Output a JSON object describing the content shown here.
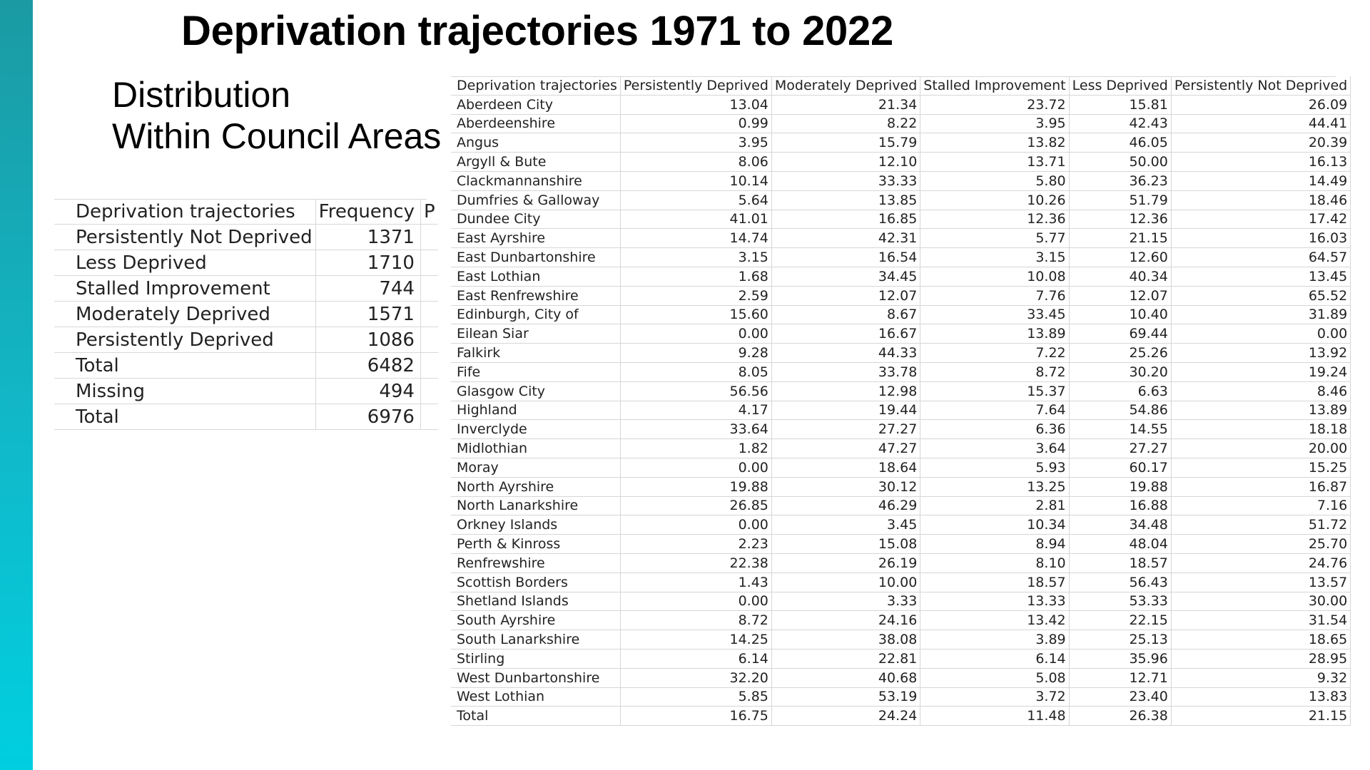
{
  "title": "Deprivation trajectories 1971 to 2022",
  "subtitle": [
    "Distribution",
    "Within Council Areas"
  ],
  "frequency_table": {
    "headers": [
      "Deprivation trajectories",
      "Frequency",
      "P"
    ],
    "rows": [
      {
        "label": "Persistently Not Deprived",
        "value": "1371"
      },
      {
        "label": "Less Deprived",
        "value": "1710"
      },
      {
        "label": "Stalled Improvement",
        "value": "744"
      },
      {
        "label": "Moderately Deprived",
        "value": "1571"
      },
      {
        "label": "Persistently Deprived",
        "value": "1086"
      },
      {
        "label": "Total",
        "value": "6482"
      },
      {
        "label": "Missing",
        "value": "494"
      },
      {
        "label": "Total",
        "value": "6976"
      }
    ]
  },
  "council_table": {
    "headers": [
      "Deprivation trajectories",
      "Persistently Deprived",
      "Moderately Deprived",
      "Stalled Improvement",
      "Less Deprived",
      "Persistently Not Deprived"
    ],
    "rows": [
      [
        "Aberdeen City",
        "13.04",
        "21.34",
        "23.72",
        "15.81",
        "26.09"
      ],
      [
        "Aberdeenshire",
        "0.99",
        "8.22",
        "3.95",
        "42.43",
        "44.41"
      ],
      [
        "Angus",
        "3.95",
        "15.79",
        "13.82",
        "46.05",
        "20.39"
      ],
      [
        "Argyll & Bute",
        "8.06",
        "12.10",
        "13.71",
        "50.00",
        "16.13"
      ],
      [
        "Clackmannanshire",
        "10.14",
        "33.33",
        "5.80",
        "36.23",
        "14.49"
      ],
      [
        "Dumfries & Galloway",
        "5.64",
        "13.85",
        "10.26",
        "51.79",
        "18.46"
      ],
      [
        "Dundee City",
        "41.01",
        "16.85",
        "12.36",
        "12.36",
        "17.42"
      ],
      [
        "East Ayrshire",
        "14.74",
        "42.31",
        "5.77",
        "21.15",
        "16.03"
      ],
      [
        "East Dunbartonshire",
        "3.15",
        "16.54",
        "3.15",
        "12.60",
        "64.57"
      ],
      [
        "East Lothian",
        "1.68",
        "34.45",
        "10.08",
        "40.34",
        "13.45"
      ],
      [
        "East Renfrewshire",
        "2.59",
        "12.07",
        "7.76",
        "12.07",
        "65.52"
      ],
      [
        "Edinburgh, City of",
        "15.60",
        "8.67",
        "33.45",
        "10.40",
        "31.89"
      ],
      [
        "Eilean Siar",
        "0.00",
        "16.67",
        "13.89",
        "69.44",
        "0.00"
      ],
      [
        "Falkirk",
        "9.28",
        "44.33",
        "7.22",
        "25.26",
        "13.92"
      ],
      [
        "Fife",
        "8.05",
        "33.78",
        "8.72",
        "30.20",
        "19.24"
      ],
      [
        "Glasgow City",
        "56.56",
        "12.98",
        "15.37",
        "6.63",
        "8.46"
      ],
      [
        "Highland",
        "4.17",
        "19.44",
        "7.64",
        "54.86",
        "13.89"
      ],
      [
        "Inverclyde",
        "33.64",
        "27.27",
        "6.36",
        "14.55",
        "18.18"
      ],
      [
        "Midlothian",
        "1.82",
        "47.27",
        "3.64",
        "27.27",
        "20.00"
      ],
      [
        "Moray",
        "0.00",
        "18.64",
        "5.93",
        "60.17",
        "15.25"
      ],
      [
        "North Ayrshire",
        "19.88",
        "30.12",
        "13.25",
        "19.88",
        "16.87"
      ],
      [
        "North Lanarkshire",
        "26.85",
        "46.29",
        "2.81",
        "16.88",
        "7.16"
      ],
      [
        "Orkney Islands",
        "0.00",
        "3.45",
        "10.34",
        "34.48",
        "51.72"
      ],
      [
        "Perth & Kinross",
        "2.23",
        "15.08",
        "8.94",
        "48.04",
        "25.70"
      ],
      [
        "Renfrewshire",
        "22.38",
        "26.19",
        "8.10",
        "18.57",
        "24.76"
      ],
      [
        "Scottish Borders",
        "1.43",
        "10.00",
        "18.57",
        "56.43",
        "13.57"
      ],
      [
        "Shetland Islands",
        "0.00",
        "3.33",
        "13.33",
        "53.33",
        "30.00"
      ],
      [
        "South Ayrshire",
        "8.72",
        "24.16",
        "13.42",
        "22.15",
        "31.54"
      ],
      [
        "South Lanarkshire",
        "14.25",
        "38.08",
        "3.89",
        "25.13",
        "18.65"
      ],
      [
        "Stirling",
        "6.14",
        "22.81",
        "6.14",
        "35.96",
        "28.95"
      ],
      [
        "West Dunbartonshire",
        "32.20",
        "40.68",
        "5.08",
        "12.71",
        "9.32"
      ],
      [
        "West Lothian",
        "5.85",
        "53.19",
        "3.72",
        "23.40",
        "13.83"
      ],
      [
        "Total",
        "16.75",
        "24.24",
        "11.48",
        "26.38",
        "21.15"
      ]
    ]
  },
  "colors": {
    "accent_bar_top": "#1b9aa3",
    "accent_bar_bottom": "#00cfe0",
    "gridline": "#d6d6d6"
  }
}
